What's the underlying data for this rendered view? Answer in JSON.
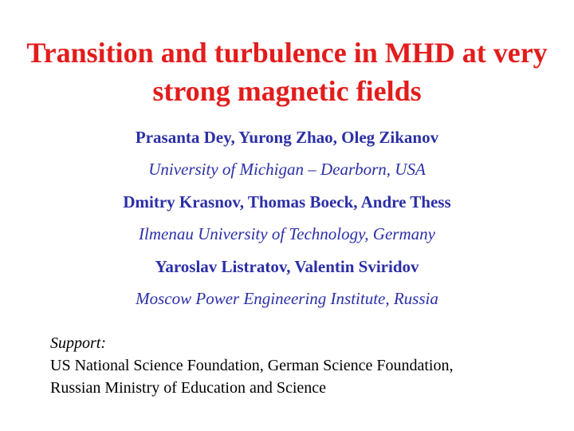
{
  "title": "Transition and turbulence in MHD at very strong magnetic fields",
  "groups": [
    {
      "authors": "Prasanta Dey, Yurong Zhao, Oleg Zikanov",
      "affiliation": "University of Michigan – Dearborn, USA"
    },
    {
      "authors": "Dmitry Krasnov, Thomas Boeck, Andre Thess",
      "affiliation": "Ilmenau University of Technology, Germany"
    },
    {
      "authors": "Yaroslav Listratov, Valentin Sviridov",
      "affiliation": "Moscow Power Engineering Institute, Russia"
    }
  ],
  "support": {
    "label": "Support:",
    "lines": [
      "US National Science Foundation, German Science Foundation,",
      "Russian Ministry of Education and Science"
    ]
  }
}
